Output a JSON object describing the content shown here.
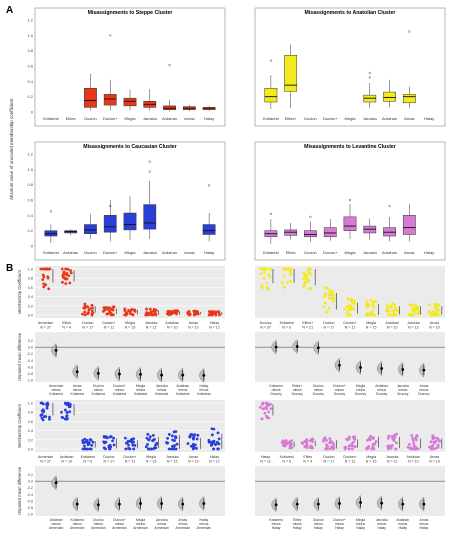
{
  "figure": {
    "panel_labels": [
      "A",
      "B"
    ],
    "ylabel_A": "Absolute value of unscaled membership coefficient",
    "ylabel_member": "Membership Coefficient",
    "ylabel_diff": "Unpaired mean difference",
    "colors": {
      "red": "#e8381c",
      "yellow": "#f2ea1c",
      "blue": "#2a3fd8",
      "pink": "#d77ad6",
      "gray_bg": "#ebebeb",
      "grid": "#ffffff"
    }
  },
  "chart_data": [
    {
      "id": "A1",
      "type": "box",
      "title": "Misassignments to Steppe Cluster",
      "color": "#e8381c",
      "categories": [
        "Kotiarest",
        "Elites",
        "Ducion",
        "Ducion+",
        "Megia",
        "Jaroska",
        "Ardahan",
        "Arnas",
        "Halay"
      ],
      "ylim": [
        0,
        1.2
      ],
      "yticks": [
        "0",
        "0.2",
        "0.4",
        "0.6",
        "0.8",
        "1.0",
        "1.2"
      ],
      "boxes": [
        null,
        null,
        {
          "min": 0.02,
          "q1": 0.06,
          "med": 0.15,
          "q3": 0.31,
          "max": 0.5,
          "out": []
        },
        {
          "min": 0.02,
          "q1": 0.09,
          "med": 0.17,
          "q3": 0.23,
          "max": 0.42,
          "out": [
            1.0
          ]
        },
        {
          "min": 0.02,
          "q1": 0.08,
          "med": 0.14,
          "q3": 0.18,
          "max": 0.29,
          "out": []
        },
        {
          "min": 0.02,
          "q1": 0.06,
          "med": 0.1,
          "q3": 0.14,
          "max": 0.3,
          "out": []
        },
        {
          "min": 0.01,
          "q1": 0.03,
          "med": 0.05,
          "q3": 0.08,
          "max": 0.16,
          "out": [
            0.61
          ]
        },
        {
          "min": 0.01,
          "q1": 0.03,
          "med": 0.05,
          "q3": 0.07,
          "max": 0.09,
          "out": []
        },
        {
          "min": 0.01,
          "q1": 0.03,
          "med": 0.05,
          "q3": 0.06,
          "max": 0.08,
          "out": []
        }
      ]
    },
    {
      "id": "A2",
      "type": "box",
      "title": "Misassignments to Anatolian Cluster",
      "color": "#f2ea1c",
      "categories": [
        "Kotiarest",
        "Elites+",
        "Ducion",
        "Ducion+",
        "Megia",
        "Jaroska",
        "Ardahan",
        "Arnas",
        "Halay"
      ],
      "ylim": [
        0,
        1.2
      ],
      "yticks": [],
      "boxes": [
        {
          "min": 0.04,
          "q1": 0.13,
          "med": 0.2,
          "q3": 0.31,
          "max": 0.48,
          "out": [
            0.67
          ]
        },
        {
          "min": 0.05,
          "q1": 0.27,
          "med": 0.35,
          "q3": 0.74,
          "max": 0.88,
          "out": []
        },
        null,
        null,
        null,
        {
          "min": 0.05,
          "q1": 0.13,
          "med": 0.18,
          "q3": 0.22,
          "max": 0.38,
          "out": [
            0.45,
            0.51
          ]
        },
        {
          "min": 0.06,
          "q1": 0.14,
          "med": 0.19,
          "q3": 0.26,
          "max": 0.42,
          "out": []
        },
        {
          "min": 0.05,
          "q1": 0.12,
          "med": 0.2,
          "q3": 0.23,
          "max": 0.33,
          "out": [
            1.05
          ]
        },
        null
      ]
    },
    {
      "id": "A3",
      "type": "box",
      "title": "Misassignments to Caucasian Cluster",
      "color": "#2a3fd8",
      "categories": [
        "Kotiarest",
        "Ardahan",
        "Ducion",
        "Ducion+",
        "Megia",
        "Jaroska",
        "Ardahan",
        "Arnas",
        "Halay"
      ],
      "ylim": [
        0,
        1.2
      ],
      "yticks": [
        "0",
        "0.2",
        "0.4",
        "0.6",
        "0.8",
        "1.0",
        "1.2"
      ],
      "boxes": [
        {
          "min": 0.04,
          "q1": 0.13,
          "med": 0.16,
          "q3": 0.2,
          "max": 0.28,
          "out": [
            0.45
          ]
        },
        {
          "min": 0.14,
          "q1": 0.17,
          "med": 0.19,
          "q3": 0.2,
          "max": 0.22,
          "out": []
        },
        {
          "min": 0.09,
          "q1": 0.16,
          "med": 0.21,
          "q3": 0.28,
          "max": 0.42,
          "out": []
        },
        {
          "min": 0.06,
          "q1": 0.18,
          "med": 0.25,
          "q3": 0.4,
          "max": 0.6,
          "out": [
            0.52
          ]
        },
        {
          "min": 0.08,
          "q1": 0.21,
          "med": 0.28,
          "q3": 0.43,
          "max": 0.65,
          "out": []
        },
        {
          "min": 0.09,
          "q1": 0.22,
          "med": 0.3,
          "q3": 0.54,
          "max": 0.85,
          "out": [
            0.97,
            1.1
          ]
        },
        null,
        null,
        {
          "min": 0.06,
          "q1": 0.15,
          "med": 0.2,
          "q3": 0.28,
          "max": 0.43,
          "out": [
            0.79
          ]
        }
      ]
    },
    {
      "id": "A4",
      "type": "box",
      "title": "Misassignments to Levantine Cluster",
      "color": "#d77ad6",
      "categories": [
        "Kotiarest",
        "Elites",
        "Ducion",
        "Ducion+",
        "Megia",
        "Jaroska",
        "Ardahan",
        "Arnas",
        "Halay"
      ],
      "ylim": [
        0,
        1.2
      ],
      "yticks": [],
      "boxes": [
        {
          "min": 0.03,
          "q1": 0.12,
          "med": 0.16,
          "q3": 0.2,
          "max": 0.35,
          "out": [
            0.42
          ]
        },
        {
          "min": 0.09,
          "q1": 0.14,
          "med": 0.18,
          "q3": 0.21,
          "max": 0.3,
          "out": []
        },
        {
          "min": 0.05,
          "q1": 0.12,
          "med": 0.15,
          "q3": 0.2,
          "max": 0.32,
          "out": [
            0.38
          ]
        },
        {
          "min": 0.07,
          "q1": 0.12,
          "med": 0.17,
          "q3": 0.24,
          "max": 0.35,
          "out": []
        },
        {
          "min": 0.09,
          "q1": 0.2,
          "med": 0.26,
          "q3": 0.38,
          "max": 0.55,
          "out": [
            0.6
          ]
        },
        {
          "min": 0.08,
          "q1": 0.17,
          "med": 0.22,
          "q3": 0.26,
          "max": 0.36,
          "out": []
        },
        {
          "min": 0.06,
          "q1": 0.13,
          "med": 0.18,
          "q3": 0.24,
          "max": 0.38,
          "out": [
            0.52
          ]
        },
        {
          "min": 0.06,
          "q1": 0.15,
          "med": 0.24,
          "q3": 0.4,
          "max": 0.55,
          "out": []
        },
        null
      ]
    },
    {
      "id": "B1",
      "type": "swarm",
      "color": "#e8381c",
      "ylim": [
        0,
        1.0
      ],
      "yticks": [
        "0.0",
        "0.2",
        "0.4",
        "0.6",
        "0.8",
        "1.0"
      ],
      "groups": [
        {
          "label": [
            "Armenian",
            "N = 37"
          ],
          "center": 0.92,
          "spread": 0.35
        },
        {
          "label": [
            "Elites",
            "N = 4"
          ],
          "center": 0.85,
          "spread": 0.2
        },
        {
          "label": [
            "Ducion",
            "N = 17"
          ],
          "center": 0.12,
          "spread": 0.12
        },
        {
          "label": [
            "Ducion+",
            "N = 11"
          ],
          "center": 0.08,
          "spread": 0.1
        },
        {
          "label": [
            "Megia",
            "N = 15"
          ],
          "center": 0.06,
          "spread": 0.08
        },
        {
          "label": [
            "Jaroska",
            "N = 12"
          ],
          "center": 0.05,
          "spread": 0.08
        },
        {
          "label": [
            "Ardahan",
            "N = 10"
          ],
          "center": 0.04,
          "spread": 0.06
        },
        {
          "label": [
            "Arnas",
            "N = 10"
          ],
          "center": 0.04,
          "spread": 0.05
        },
        {
          "label": [
            "Halay",
            "N = 12"
          ],
          "center": 0.03,
          "spread": 0.05
        }
      ]
    },
    {
      "id": "B2",
      "type": "swarm",
      "color": "#f2ea1c",
      "ylim": [
        0,
        1.0
      ],
      "yticks": [],
      "groups": [
        {
          "label": [
            "Duzcey",
            "N = 37"
          ],
          "center": 0.9,
          "spread": 0.35
        },
        {
          "label": [
            "Kotiarest",
            "N = 6"
          ],
          "center": 0.88,
          "spread": 0.3
        },
        {
          "label": [
            "Elites+",
            "N = 21"
          ],
          "center": 0.86,
          "spread": 0.35
        },
        {
          "label": [
            "Ducion",
            "N = 17"
          ],
          "center": 0.3,
          "spread": 0.3
        },
        {
          "label": [
            "Ducion+",
            "N = 11"
          ],
          "center": 0.15,
          "spread": 0.2
        },
        {
          "label": [
            "Megia",
            "N = 15"
          ],
          "center": 0.12,
          "spread": 0.2
        },
        {
          "label": [
            "Ardahan",
            "N = 10"
          ],
          "center": 0.1,
          "spread": 0.15
        },
        {
          "label": [
            "Jaroska",
            "N = 12"
          ],
          "center": 0.1,
          "spread": 0.15
        },
        {
          "label": [
            "Arnas",
            "N = 10"
          ],
          "center": 0.1,
          "spread": 0.15
        }
      ]
    },
    {
      "id": "B3",
      "type": "swarm",
      "color": "#2a3fd8",
      "ylim": [
        0,
        1.0
      ],
      "yticks": [
        "0.0",
        "0.2",
        "0.4",
        "0.6",
        "0.8",
        "1.0"
      ],
      "groups": [
        {
          "label": [
            "Armenian",
            "N = 37"
          ],
          "center": 0.88,
          "spread": 0.25
        },
        {
          "label": [
            "Ardahan",
            "N = 10"
          ],
          "center": 0.85,
          "spread": 0.2
        },
        {
          "label": [
            "Kotiarest",
            "N = 6"
          ],
          "center": 0.1,
          "spread": 0.12
        },
        {
          "label": [
            "Ducion",
            "N = 17"
          ],
          "center": 0.12,
          "spread": 0.18
        },
        {
          "label": [
            "Ducion+",
            "N = 11"
          ],
          "center": 0.1,
          "spread": 0.15
        },
        {
          "label": [
            "Megia",
            "N = 15"
          ],
          "center": 0.14,
          "spread": 0.2
        },
        {
          "label": [
            "Jaroska",
            "N = 12"
          ],
          "center": 0.15,
          "spread": 0.25
        },
        {
          "label": [
            "Arnas",
            "N = 10"
          ],
          "center": 0.12,
          "spread": 0.2
        },
        {
          "label": [
            "Halay",
            "N = 12"
          ],
          "center": 0.15,
          "spread": 0.3
        }
      ]
    },
    {
      "id": "B4",
      "type": "swarm",
      "color": "#d77ad6",
      "ylim": [
        0,
        1.0
      ],
      "yticks": [],
      "groups": [
        {
          "label": [
            "Halay",
            "N = 12"
          ],
          "center": 0.85,
          "spread": 0.2
        },
        {
          "label": [
            "Kotiarest",
            "N = 6"
          ],
          "center": 0.1,
          "spread": 0.1
        },
        {
          "label": [
            "Elites",
            "N = 4"
          ],
          "center": 0.12,
          "spread": 0.1
        },
        {
          "label": [
            "Ducion",
            "N = 17"
          ],
          "center": 0.1,
          "spread": 0.15
        },
        {
          "label": [
            "Ducion+",
            "N = 11"
          ],
          "center": 0.12,
          "spread": 0.15
        },
        {
          "label": [
            "Megia",
            "N = 15"
          ],
          "center": 0.15,
          "spread": 0.2
        },
        {
          "label": [
            "Jaroska",
            "N = 12"
          ],
          "center": 0.14,
          "spread": 0.2
        },
        {
          "label": [
            "Ardahan",
            "N = 10"
          ],
          "center": 0.12,
          "spread": 0.18
        },
        {
          "label": [
            "Arnas",
            "N = 10"
          ],
          "center": 0.12,
          "spread": 0.18
        }
      ]
    },
    {
      "id": "C1",
      "type": "estimation",
      "ylim": [
        -1.0,
        0.4
      ],
      "yticks": [
        "0.2",
        "0.0",
        "-0.2",
        "-0.4",
        "-0.6",
        "-0.8",
        "-1.0"
      ],
      "diffs": [
        -0.1,
        -0.75,
        -0.8,
        -0.82,
        -0.83,
        -0.85,
        -0.85,
        -0.86
      ],
      "labels": [
        [
          "Armenian",
          "minus",
          "Kotiarest"
        ],
        [
          "Arnas",
          "minus",
          "Kotiarest"
        ],
        [
          "Ducion",
          "minus",
          "Kotiarest"
        ],
        [
          "Ducion+",
          "minus",
          "Kotiarest"
        ],
        [
          "Megia",
          "minus",
          "Kotiarest"
        ],
        [
          "Jaroska",
          "minus",
          "Kotiarest"
        ],
        [
          "Ardahan",
          "minus",
          "Kotiarest"
        ],
        [
          "Halay",
          "minus",
          "Kotiarest"
        ]
      ]
    },
    {
      "id": "C2",
      "type": "estimation",
      "ylim": [
        -1.0,
        0.4
      ],
      "yticks": [],
      "diffs": [
        0.0,
        0.02,
        -0.02,
        -0.55,
        -0.62,
        -0.65,
        -0.68,
        -0.7
      ],
      "labels": [
        [
          "Kotiarest",
          "minus",
          "Duzcey"
        ],
        [
          "Elites+",
          "minus",
          "Duzcey"
        ],
        [
          "Ducion",
          "minus",
          "Duzcey"
        ],
        [
          "Ducion+",
          "minus",
          "Duzcey"
        ],
        [
          "Megia",
          "minus",
          "Duzcey"
        ],
        [
          "Ardahan",
          "minus",
          "Duzcey"
        ],
        [
          "Jaroska",
          "minus",
          "Duzcey"
        ],
        [
          "Arnas",
          "minus",
          "Duzcey"
        ]
      ]
    },
    {
      "id": "C3",
      "type": "estimation",
      "ylim": [
        -1.0,
        0.4
      ],
      "yticks": [
        "0.2",
        "0.0",
        "-0.2",
        "-0.4",
        "-0.6",
        "-0.8",
        "-1.0"
      ],
      "diffs": [
        -0.05,
        -0.7,
        -0.72,
        -0.7,
        -0.68,
        -0.68,
        -0.7,
        -0.68
      ],
      "labels": [
        [
          "Ardahan",
          "minus",
          "Armenian"
        ],
        [
          "Kotiarest",
          "minus",
          "Armenian"
        ],
        [
          "Ducion",
          "minus",
          "Armenian"
        ],
        [
          "Ducion+",
          "minus",
          "Armenian"
        ],
        [
          "Megia",
          "minus",
          "Armenian"
        ],
        [
          "Jaroska",
          "minus",
          "Armenian"
        ],
        [
          "Arnas",
          "minus",
          "Armenian"
        ],
        [
          "Halay",
          "minus",
          "Armenian"
        ]
      ]
    },
    {
      "id": "C4",
      "type": "estimation",
      "ylim": [
        -1.0,
        0.4
      ],
      "yticks": [],
      "diffs": [
        -0.72,
        -0.7,
        -0.7,
        -0.68,
        -0.65,
        -0.67,
        -0.7,
        -0.7
      ],
      "labels": [
        [
          "Kotiarest",
          "minus",
          "Halay"
        ],
        [
          "Elites",
          "minus",
          "Halay"
        ],
        [
          "Ducion",
          "minus",
          "Halay"
        ],
        [
          "Ducion+",
          "minus",
          "Halay"
        ],
        [
          "Megia",
          "minus",
          "Halay"
        ],
        [
          "Jaroska",
          "minus",
          "Halay"
        ],
        [
          "Ardahan",
          "minus",
          "Halay"
        ],
        [
          "Arnas",
          "minus",
          "Halay"
        ]
      ]
    }
  ]
}
